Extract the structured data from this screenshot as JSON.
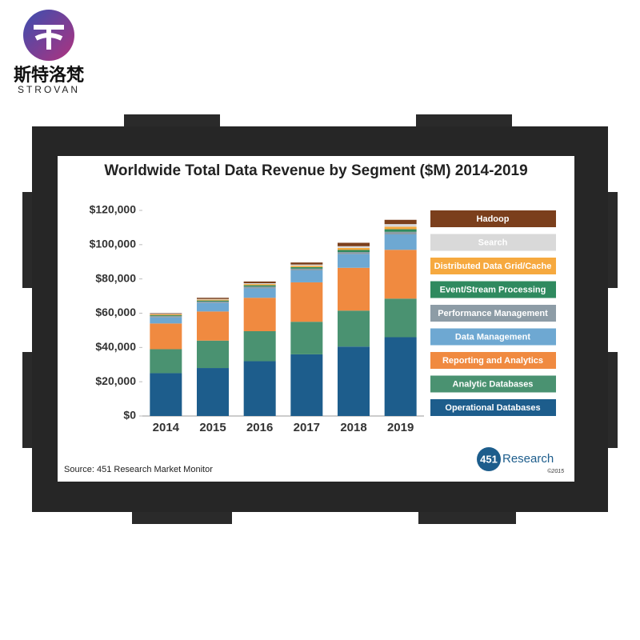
{
  "brand": {
    "name_cn": "斯特洛梵",
    "name_en": "STROVAN"
  },
  "publisher": {
    "number": "451",
    "name": "Research",
    "copyright": "©2015"
  },
  "chart_data": {
    "type": "stacked-bar",
    "title": "Worldwide Total Data Revenue by Segment ($M) 2014-2019",
    "source": "Source: 451 Research Market Monitor",
    "categories": [
      "2014",
      "2015",
      "2016",
      "2017",
      "2018",
      "2019"
    ],
    "ylim": [
      0,
      120000
    ],
    "yticks": [
      {
        "value": 0,
        "label": "$0"
      },
      {
        "value": 20000,
        "label": "$20,000"
      },
      {
        "value": 40000,
        "label": "$40,000"
      },
      {
        "value": 60000,
        "label": "$60,000"
      },
      {
        "value": 80000,
        "label": "$80,000"
      },
      {
        "value": 100000,
        "label": "$100,000"
      },
      {
        "value": 120000,
        "label": "$120,000"
      }
    ],
    "grid": false,
    "series": [
      {
        "name": "Operational Databases",
        "color": "#1d5d8c",
        "values": [
          25000,
          28000,
          32000,
          36000,
          40500,
          46000
        ]
      },
      {
        "name": "Analytic Databases",
        "color": "#4a9271",
        "values": [
          14000,
          16000,
          17500,
          19000,
          21000,
          22500
        ]
      },
      {
        "name": "Reporting and Analytics",
        "color": "#f08a40",
        "values": [
          15000,
          17000,
          19500,
          23000,
          25000,
          28500
        ]
      },
      {
        "name": "Data Management",
        "color": "#6ea8d2",
        "values": [
          3500,
          5000,
          5500,
          7000,
          8000,
          9000
        ]
      },
      {
        "name": "Performance Management",
        "color": "#8d9ca6",
        "values": [
          800,
          800,
          1000,
          1000,
          1200,
          1500
        ]
      },
      {
        "name": "Event/Stream Processing",
        "color": "#2f8a5f",
        "values": [
          500,
          600,
          800,
          900,
          1200,
          1500
        ]
      },
      {
        "name": "Distributed Data Grid/Cache",
        "color": "#f6a93f",
        "values": [
          500,
          500,
          700,
          800,
          1200,
          1500
        ]
      },
      {
        "name": "Search",
        "color": "#d9d9d9",
        "values": [
          300,
          400,
          500,
          700,
          1000,
          1500
        ]
      },
      {
        "name": "Hadoop",
        "color": "#7b3f1c",
        "values": [
          400,
          700,
          1000,
          1200,
          2000,
          2500
        ]
      }
    ],
    "legend": "right"
  }
}
